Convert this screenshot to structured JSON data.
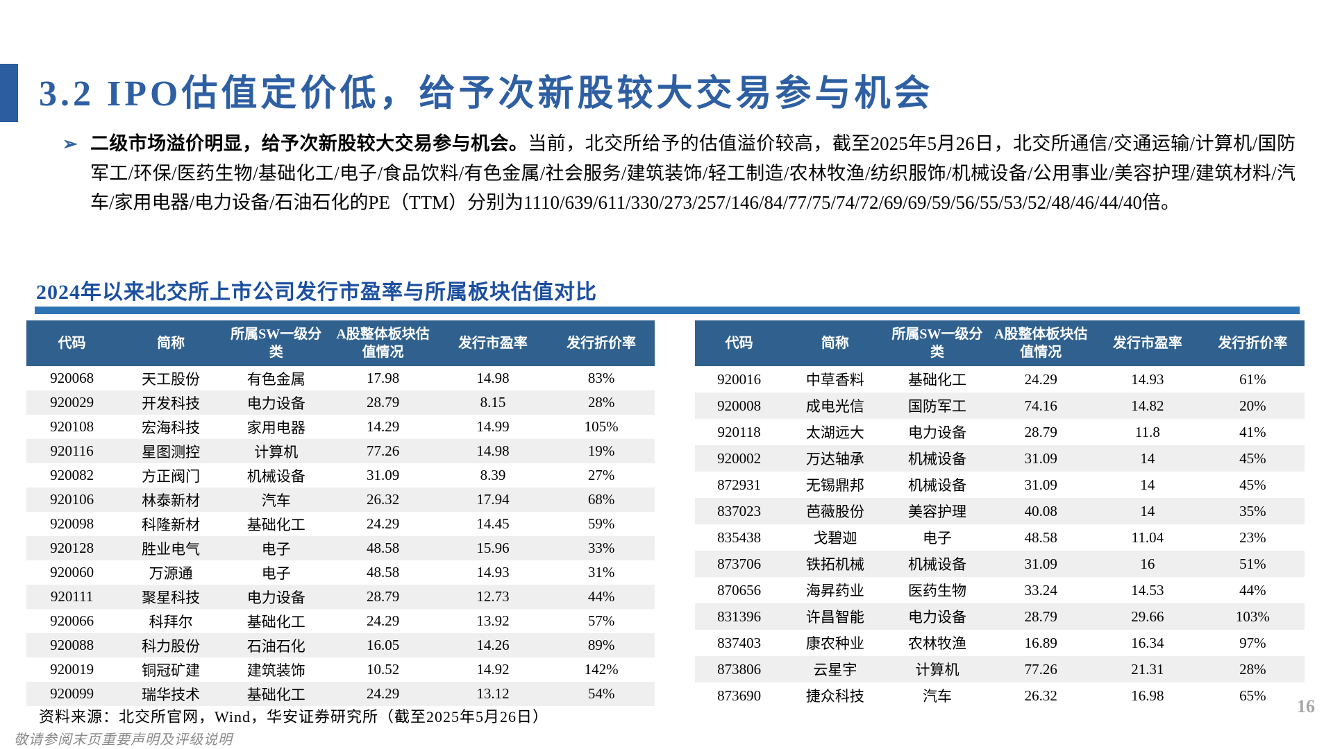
{
  "header": {
    "title": "3.2 IPO估值定价低，给予次新股较大交易参与机会"
  },
  "bullet": {
    "marker": "➢",
    "bold": "二级市场溢价明显，给予次新股较大交易参与机会。",
    "text": "当前，北交所给予的估值溢价较高，截至2025年5月26日，北交所通信/交通运输/计算机/国防军工/环保/医药生物/基础化工/电子/食品饮料/有色金属/社会服务/建筑装饰/轻工制造/农林牧渔/纺织服饰/机械设备/公用事业/美容护理/建筑材料/汽车/家用电器/电力设备/石油石化的PE（TTM）分别为1110/639/611/330/273/257/146/84/77/75/74/72/69/69/59/56/55/53/52/48/46/44/40倍。"
  },
  "section": {
    "title": "2024年以来北交所上市公司发行市盈率与所属板块估值对比"
  },
  "tables": {
    "left": {
      "headers": [
        "代码",
        "简称",
        "所属SW一级分类",
        "A股整体板块估值情况",
        "发行市盈率",
        "发行折价率"
      ],
      "rows": [
        [
          "920068",
          "天工股份",
          "有色金属",
          "17.98",
          "14.98",
          "83%"
        ],
        [
          "920029",
          "开发科技",
          "电力设备",
          "28.79",
          "8.15",
          "28%"
        ],
        [
          "920108",
          "宏海科技",
          "家用电器",
          "14.29",
          "14.99",
          "105%"
        ],
        [
          "920116",
          "星图测控",
          "计算机",
          "77.26",
          "14.98",
          "19%"
        ],
        [
          "920082",
          "方正阀门",
          "机械设备",
          "31.09",
          "8.39",
          "27%"
        ],
        [
          "920106",
          "林泰新材",
          "汽车",
          "26.32",
          "17.94",
          "68%"
        ],
        [
          "920098",
          "科隆新材",
          "基础化工",
          "24.29",
          "14.45",
          "59%"
        ],
        [
          "920128",
          "胜业电气",
          "电子",
          "48.58",
          "15.96",
          "33%"
        ],
        [
          "920060",
          "万源通",
          "电子",
          "48.58",
          "14.93",
          "31%"
        ],
        [
          "920111",
          "聚星科技",
          "电力设备",
          "28.79",
          "12.73",
          "44%"
        ],
        [
          "920066",
          "科拜尔",
          "基础化工",
          "24.29",
          "13.92",
          "57%"
        ],
        [
          "920088",
          "科力股份",
          "石油石化",
          "16.05",
          "14.26",
          "89%"
        ],
        [
          "920019",
          "铜冠矿建",
          "建筑装饰",
          "10.52",
          "14.92",
          "142%"
        ],
        [
          "920099",
          "瑞华技术",
          "基础化工",
          "24.29",
          "13.12",
          "54%"
        ]
      ]
    },
    "right": {
      "headers": [
        "代码",
        "简称",
        "所属SW一级分类",
        "A股整体板块估值情况",
        "发行市盈率",
        "发行折价率"
      ],
      "rows": [
        [
          "920016",
          "中草香料",
          "基础化工",
          "24.29",
          "14.93",
          "61%"
        ],
        [
          "920008",
          "成电光信",
          "国防军工",
          "74.16",
          "14.82",
          "20%"
        ],
        [
          "920118",
          "太湖远大",
          "电力设备",
          "28.79",
          "11.8",
          "41%"
        ],
        [
          "920002",
          "万达轴承",
          "机械设备",
          "31.09",
          "14",
          "45%"
        ],
        [
          "872931",
          "无锡鼎邦",
          "机械设备",
          "31.09",
          "14",
          "45%"
        ],
        [
          "837023",
          "芭薇股份",
          "美容护理",
          "40.08",
          "14",
          "35%"
        ],
        [
          "835438",
          "戈碧迦",
          "电子",
          "48.58",
          "11.04",
          "23%"
        ],
        [
          "873706",
          "铁拓机械",
          "机械设备",
          "31.09",
          "16",
          "51%"
        ],
        [
          "870656",
          "海昇药业",
          "医药生物",
          "33.24",
          "14.53",
          "44%"
        ],
        [
          "831396",
          "许昌智能",
          "电力设备",
          "28.79",
          "29.66",
          "103%"
        ],
        [
          "837403",
          "康农种业",
          "农林牧渔",
          "16.89",
          "16.34",
          "97%"
        ],
        [
          "873806",
          "云星宇",
          "计算机",
          "77.26",
          "21.31",
          "28%"
        ],
        [
          "873690",
          "捷众科技",
          "汽车",
          "26.32",
          "16.98",
          "65%"
        ]
      ]
    }
  },
  "footer": {
    "source": "资料来源：北交所官网，Wind，华安证券研究所（截至2025年5月26日）",
    "disclaimer": "敬请参阅末页重要声明及评级说明",
    "page_number": "16"
  },
  "colors": {
    "title_blue": "#2E5FA3",
    "rule_blue": "#2E74B5",
    "table_header_blue": "#30618E",
    "stripe_gray": "#EFEFEF",
    "page_number_gray": "#A6A6A6"
  }
}
